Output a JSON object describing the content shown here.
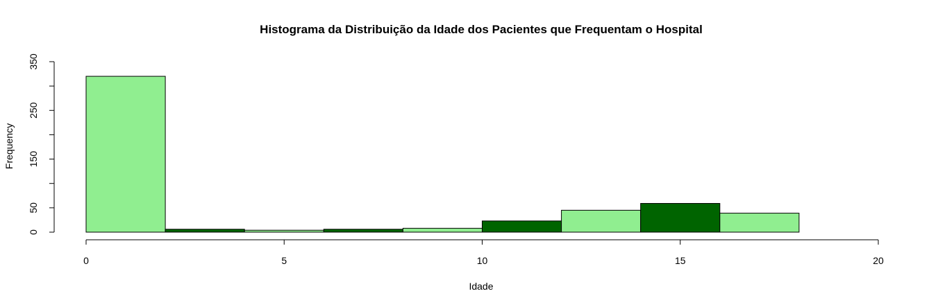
{
  "chart_data": {
    "type": "bar",
    "title": "Histograma da Distribuição da Idade dos Pacientes que Frequentam o Hospital",
    "xlabel": "Idade",
    "ylabel": "Frequency",
    "xlim": [
      0,
      20
    ],
    "ylim": [
      0,
      350
    ],
    "x_ticks": [
      0,
      5,
      10,
      15,
      20
    ],
    "y_ticks": [
      0,
      50,
      100,
      150,
      200,
      250,
      300,
      350
    ],
    "y_tick_labels": [
      "0",
      "50",
      "",
      "150",
      "",
      "250",
      "",
      "350"
    ],
    "grid": false,
    "bins": [
      {
        "start": 0,
        "end": 2,
        "value": 320,
        "color": "#90EE90"
      },
      {
        "start": 2,
        "end": 4,
        "value": 6,
        "color": "#006400"
      },
      {
        "start": 4,
        "end": 6,
        "value": 4,
        "color": "#90EE90"
      },
      {
        "start": 6,
        "end": 8,
        "value": 6,
        "color": "#006400"
      },
      {
        "start": 8,
        "end": 10,
        "value": 8,
        "color": "#90EE90"
      },
      {
        "start": 10,
        "end": 12,
        "value": 23,
        "color": "#006400"
      },
      {
        "start": 12,
        "end": 14,
        "value": 45,
        "color": "#90EE90"
      },
      {
        "start": 14,
        "end": 16,
        "value": 59,
        "color": "#006400"
      },
      {
        "start": 16,
        "end": 18,
        "value": 39,
        "color": "#90EE90"
      }
    ]
  }
}
